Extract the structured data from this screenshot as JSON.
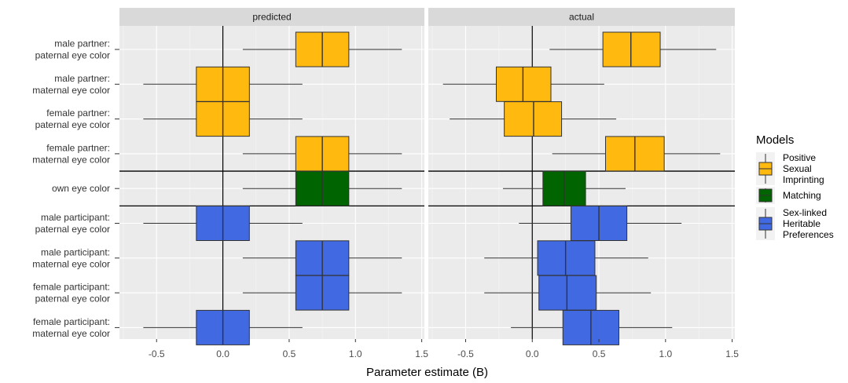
{
  "chart_data": {
    "type": "boxplot",
    "xlabel": "Parameter estimate (B)",
    "xlim": [
      -0.78,
      1.52
    ],
    "xticks": [
      -0.5,
      0.0,
      0.5,
      1.0,
      1.5
    ],
    "xtick_labels": [
      "-0.5",
      "0.0",
      "0.5",
      "1.0",
      "1.5"
    ],
    "grid": true,
    "vline_at": 0.0,
    "categories": [
      "male partner:\npaternal eye color",
      "male partner:\nmaternal eye color",
      "female partner:\npaternal eye color",
      "female partner:\nmaternal eye color",
      "own eye color",
      "male participant:\npaternal eye color",
      "male participant:\nmaternal eye color",
      "female participant:\npaternal eye color",
      "female participant:\nmaternal eye color"
    ],
    "separators_after_index": [
      3,
      4
    ],
    "legend": {
      "title": "Models",
      "placement": "right",
      "items": [
        {
          "label": "Positive\nSexual\nImprinting",
          "color": "#FFB90F"
        },
        {
          "label": "Matching",
          "color": "#006400"
        },
        {
          "label": "Sex-linked\nHeritable\nPreferences",
          "color": "#4169E1"
        }
      ]
    },
    "panels": [
      {
        "title": "predicted",
        "boxes": [
          {
            "category": 0,
            "model": 0,
            "whisker_low": 0.15,
            "q1": 0.55,
            "median": 0.75,
            "q3": 0.95,
            "whisker_high": 1.35
          },
          {
            "category": 1,
            "model": 0,
            "whisker_low": -0.6,
            "q1": -0.2,
            "median": 0.0,
            "q3": 0.2,
            "whisker_high": 0.6
          },
          {
            "category": 2,
            "model": 0,
            "whisker_low": -0.6,
            "q1": -0.2,
            "median": 0.0,
            "q3": 0.2,
            "whisker_high": 0.6
          },
          {
            "category": 3,
            "model": 0,
            "whisker_low": 0.15,
            "q1": 0.55,
            "median": 0.75,
            "q3": 0.95,
            "whisker_high": 1.35
          },
          {
            "category": 4,
            "model": 1,
            "whisker_low": 0.15,
            "q1": 0.55,
            "median": 0.75,
            "q3": 0.95,
            "whisker_high": 1.35
          },
          {
            "category": 5,
            "model": 2,
            "whisker_low": -0.6,
            "q1": -0.2,
            "median": 0.0,
            "q3": 0.2,
            "whisker_high": 0.6
          },
          {
            "category": 6,
            "model": 2,
            "whisker_low": 0.15,
            "q1": 0.55,
            "median": 0.75,
            "q3": 0.95,
            "whisker_high": 1.35
          },
          {
            "category": 7,
            "model": 2,
            "whisker_low": 0.15,
            "q1": 0.55,
            "median": 0.75,
            "q3": 0.95,
            "whisker_high": 1.35
          },
          {
            "category": 8,
            "model": 2,
            "whisker_low": -0.6,
            "q1": -0.2,
            "median": 0.0,
            "q3": 0.2,
            "whisker_high": 0.6
          }
        ]
      },
      {
        "title": "actual",
        "boxes": [
          {
            "category": 0,
            "model": 0,
            "whisker_low": 0.13,
            "q1": 0.53,
            "median": 0.74,
            "q3": 0.96,
            "whisker_high": 1.38
          },
          {
            "category": 1,
            "model": 0,
            "whisker_low": -0.67,
            "q1": -0.27,
            "median": -0.07,
            "q3": 0.14,
            "whisker_high": 0.54
          },
          {
            "category": 2,
            "model": 0,
            "whisker_low": -0.62,
            "q1": -0.21,
            "median": 0.01,
            "q3": 0.22,
            "whisker_high": 0.63
          },
          {
            "category": 3,
            "model": 0,
            "whisker_low": 0.15,
            "q1": 0.55,
            "median": 0.77,
            "q3": 0.99,
            "whisker_high": 1.41
          },
          {
            "category": 4,
            "model": 1,
            "whisker_low": -0.22,
            "q1": 0.08,
            "median": 0.24,
            "q3": 0.4,
            "whisker_high": 0.7
          },
          {
            "category": 5,
            "model": 2,
            "whisker_low": -0.1,
            "q1": 0.29,
            "median": 0.5,
            "q3": 0.71,
            "whisker_high": 1.12
          },
          {
            "category": 6,
            "model": 2,
            "whisker_low": -0.36,
            "q1": 0.04,
            "median": 0.25,
            "q3": 0.47,
            "whisker_high": 0.87
          },
          {
            "category": 7,
            "model": 2,
            "whisker_low": -0.36,
            "q1": 0.05,
            "median": 0.26,
            "q3": 0.48,
            "whisker_high": 0.89
          },
          {
            "category": 8,
            "model": 2,
            "whisker_low": -0.16,
            "q1": 0.23,
            "median": 0.44,
            "q3": 0.65,
            "whisker_high": 1.05
          }
        ]
      }
    ]
  }
}
